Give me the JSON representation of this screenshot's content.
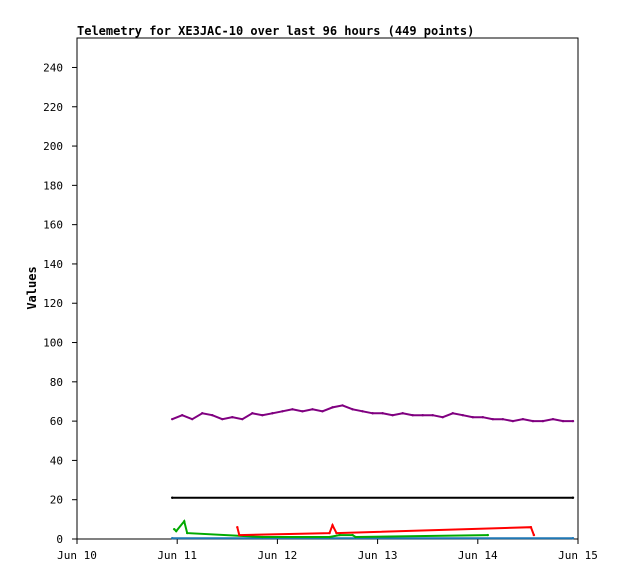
{
  "chart_data": {
    "type": "line",
    "title": "Telemetry for XE3JAC-10 over last 96 hours (449 points)",
    "xlabel": "",
    "ylabel": "Values",
    "ylim": [
      0,
      255
    ],
    "yticks": [
      0,
      20,
      40,
      60,
      80,
      100,
      120,
      140,
      160,
      180,
      200,
      220,
      240
    ],
    "xlim": [
      "Jun 10",
      "Jun 15"
    ],
    "xticks": [
      "Jun 10",
      "Jun 11",
      "Jun 12",
      "Jun 13",
      "Jun 14",
      "Jun 15"
    ],
    "grid": false,
    "series": [
      {
        "color": "#800080",
        "x": [
          10.95,
          11.05,
          11.15,
          11.25,
          11.35,
          11.45,
          11.55,
          11.65,
          11.75,
          11.85,
          11.95,
          12.05,
          12.15,
          12.25,
          12.35,
          12.45,
          12.55,
          12.65,
          12.75,
          12.85,
          12.95,
          13.05,
          13.15,
          13.25,
          13.35,
          13.45,
          13.55,
          13.65,
          13.75,
          13.85,
          13.95,
          14.05,
          14.15,
          14.25,
          14.35,
          14.45,
          14.55,
          14.65,
          14.75,
          14.85,
          14.95
        ],
        "values": [
          61,
          63,
          61,
          64,
          63,
          61,
          62,
          61,
          64,
          63,
          64,
          65,
          66,
          65,
          66,
          65,
          67,
          68,
          66,
          65,
          64,
          64,
          63,
          64,
          63,
          63,
          63,
          62,
          64,
          63,
          62,
          62,
          61,
          61,
          60,
          61,
          60,
          60,
          61,
          60,
          60
        ]
      },
      {
        "color": "#000000",
        "x": [
          10.95,
          14.95
        ],
        "values": [
          21,
          21
        ]
      },
      {
        "color": "#1f77b4",
        "x": [
          10.95,
          14.95
        ],
        "values": [
          0.4,
          0.4
        ]
      },
      {
        "color": "#00aa00",
        "x": [
          10.97,
          10.99,
          11.07,
          11.1,
          11.85,
          12.52,
          12.62,
          12.75,
          12.78,
          14.1
        ],
        "values": [
          5,
          4,
          9,
          3,
          1,
          1,
          2,
          2,
          1,
          2
        ]
      },
      {
        "color": "#ff0000",
        "x": [
          11.6,
          11.62,
          12.52,
          12.55,
          12.59,
          14.53,
          14.56
        ],
        "values": [
          6,
          2,
          3,
          7,
          3,
          6,
          2
        ]
      }
    ]
  }
}
